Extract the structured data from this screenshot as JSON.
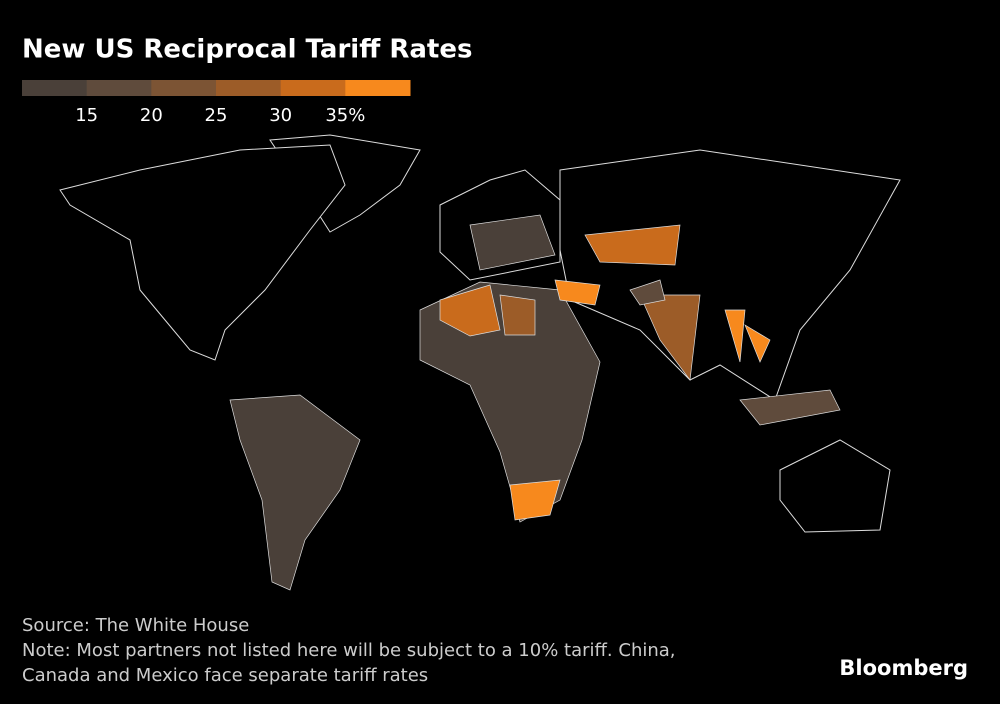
{
  "title": "New US Reciprocal Tariff Rates",
  "legend": {
    "colors": [
      "#4a4039",
      "#5f4b3c",
      "#7c5434",
      "#9c5c28",
      "#c96b1c",
      "#f7891d"
    ],
    "lim": [
      10,
      40
    ],
    "ticks": [
      15,
      20,
      25,
      30,
      {
        "value": 35,
        "label": "35%"
      }
    ]
  },
  "source": "Source: The White House",
  "note": [
    "Note: Most partners not listed here will be subject to a 10% tariff. China,",
    "Canada and Mexico face separate tariff rates"
  ],
  "logo": "Bloomberg"
}
